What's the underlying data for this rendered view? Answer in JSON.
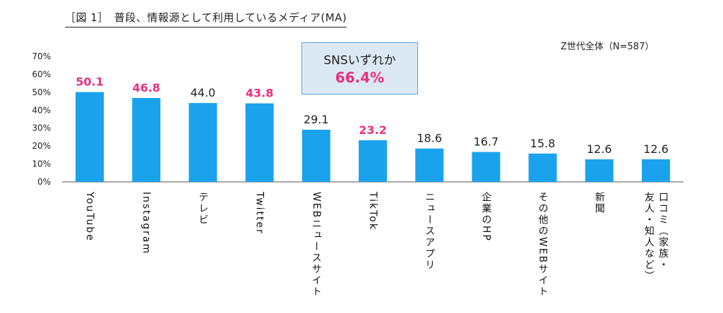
{
  "header": {
    "title": "［図 1］　普段、情報源として利用しているメディア(MA)",
    "subset": "Z世代全体（N=587）"
  },
  "callout": {
    "label": "SNSいずれか",
    "value": "66.4%"
  },
  "colors": {
    "bar": "#1aa3ec",
    "sns_highlight": "#e8317f",
    "normal_label": "#222222",
    "callout_fill": "#dce9f4",
    "callout_border": "#5aa0d6"
  },
  "chart_data": {
    "type": "bar",
    "categories": [
      "YouTube",
      "Instagram",
      "テレビ",
      "Twitter",
      "WEBニュースサイト",
      "TikTok",
      "ニュースアプリ",
      "企業のHP",
      "その他のWEBサイト",
      "新聞",
      "口コミ（家族・友人・知人など）"
    ],
    "category_label_lines": [
      [
        "YouTube"
      ],
      [
        "Instagram"
      ],
      [
        "テレビ"
      ],
      [
        "Twitter"
      ],
      [
        "WEBニュースサイト"
      ],
      [
        "TikTok"
      ],
      [
        "ニュースアプリ"
      ],
      [
        "企業のHP"
      ],
      [
        "その他のWEBサイト"
      ],
      [
        "新聞"
      ],
      [
        "口コミ（家族・",
        "友人・知人など）"
      ]
    ],
    "values": [
      50.1,
      46.8,
      44.0,
      43.8,
      29.1,
      23.2,
      18.6,
      16.7,
      15.8,
      12.6,
      12.6
    ],
    "value_labels": [
      "50.1",
      "46.8",
      "44.0",
      "43.8",
      "29.1",
      "23.2",
      "18.6",
      "16.7",
      "15.8",
      "12.6",
      "12.6"
    ],
    "sns_highlight": [
      true,
      true,
      false,
      true,
      false,
      true,
      false,
      false,
      false,
      false,
      false
    ],
    "yticks": [
      "0%",
      "10%",
      "20%",
      "30%",
      "40%",
      "50%",
      "60%",
      "70%"
    ],
    "ylim": [
      0,
      70
    ],
    "grid": false,
    "legend": "none"
  }
}
